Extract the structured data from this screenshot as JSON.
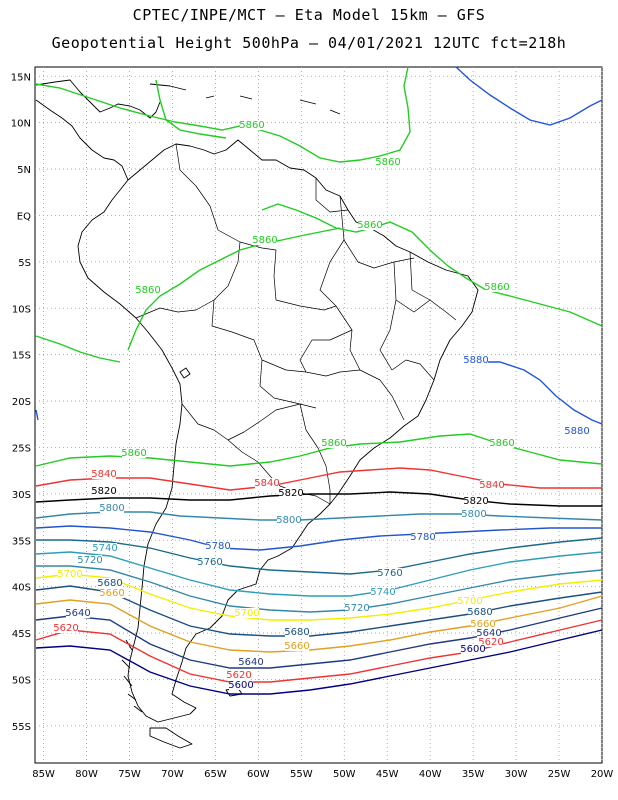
{
  "header": {
    "line1": "CPTEC/INPE/MCT –  Eta Model 15km – GFS",
    "line2": "Geopotential Height 500hPa – 04/01/2021 12UTC fct=218h"
  },
  "map": {
    "lon_range": [
      -86,
      -20
    ],
    "lat_range": [
      16,
      -59
    ],
    "lat_ticks": [
      "15N",
      "10N",
      "5N",
      "EQ",
      "5S",
      "10S",
      "15S",
      "20S",
      "25S",
      "30S",
      "35S",
      "40S",
      "45S",
      "50S",
      "55S"
    ],
    "lon_ticks": [
      "85W",
      "80W",
      "75W",
      "70W",
      "65W",
      "60W",
      "55W",
      "50W",
      "45W",
      "40W",
      "35W",
      "30W",
      "25W",
      "20W"
    ],
    "grid": true,
    "contour_interval_m": 20
  },
  "colors": {
    "5600": "#000080",
    "5620": "#ee3333",
    "5640": "#203a80",
    "5660": "#e0a020",
    "5680": "#1a5080",
    "5700": "#f0f000",
    "5720": "#3388aa",
    "5740": "#2e9eb8",
    "5760": "#1a6a8a",
    "5780": "#2255cc",
    "5800": "#3388aa",
    "5820": "#000000",
    "5840": "#ee3333",
    "5860": "#22cc22",
    "5880": "#2255dd",
    "grid": "#9a9a9a",
    "coast": "#000000"
  },
  "labels": [
    {
      "text": "5860",
      "level": "5860"
    },
    {
      "text": "5860",
      "level": "5860"
    },
    {
      "text": "5860",
      "level": "5860"
    },
    {
      "text": "5860",
      "level": "5860"
    },
    {
      "text": "5860",
      "level": "5860"
    },
    {
      "text": "5860",
      "level": "5860"
    },
    {
      "text": "5860",
      "level": "5860"
    },
    {
      "text": "5860",
      "level": "5860"
    },
    {
      "text": "5860",
      "level": "5860"
    },
    {
      "text": "5880",
      "level": "5880"
    },
    {
      "text": "5880",
      "level": "5880"
    },
    {
      "text": "5840",
      "level": "5840"
    },
    {
      "text": "5840",
      "level": "5840"
    },
    {
      "text": "5840",
      "level": "5840"
    },
    {
      "text": "5820",
      "level": "5820"
    },
    {
      "text": "5820",
      "level": "5820"
    },
    {
      "text": "5820",
      "level": "5820"
    },
    {
      "text": "5800",
      "level": "5800"
    },
    {
      "text": "5800",
      "level": "5800"
    },
    {
      "text": "5800",
      "level": "5800"
    },
    {
      "text": "5780",
      "level": "5780"
    },
    {
      "text": "5780",
      "level": "5780"
    },
    {
      "text": "5760",
      "level": "5760"
    },
    {
      "text": "5760",
      "level": "5760"
    },
    {
      "text": "5740",
      "level": "5740"
    },
    {
      "text": "5740",
      "level": "5740"
    },
    {
      "text": "5720",
      "level": "5720"
    },
    {
      "text": "5720",
      "level": "5720"
    },
    {
      "text": "5700",
      "level": "5700"
    },
    {
      "text": "5700",
      "level": "5700"
    },
    {
      "text": "5700",
      "level": "5700"
    },
    {
      "text": "5680",
      "level": "5680"
    },
    {
      "text": "5680",
      "level": "5680"
    },
    {
      "text": "5680",
      "level": "5680"
    },
    {
      "text": "5660",
      "level": "5660"
    },
    {
      "text": "5660",
      "level": "5660"
    },
    {
      "text": "5660",
      "level": "5660"
    },
    {
      "text": "5640",
      "level": "5640"
    },
    {
      "text": "5640",
      "level": "5640"
    },
    {
      "text": "5640",
      "level": "5640"
    },
    {
      "text": "5620",
      "level": "5620"
    },
    {
      "text": "5620",
      "level": "5620"
    },
    {
      "text": "5620",
      "level": "5620"
    },
    {
      "text": "5600",
      "level": "5600"
    },
    {
      "text": "5600",
      "level": "5600"
    }
  ]
}
